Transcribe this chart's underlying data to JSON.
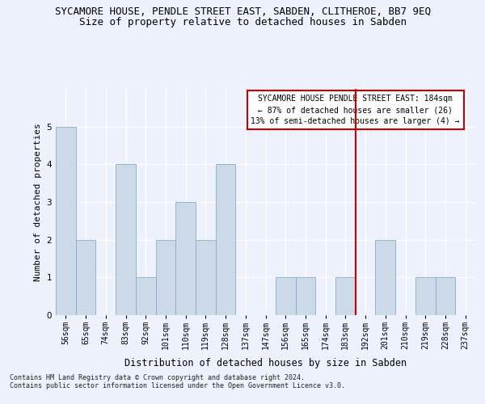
{
  "title": "SYCAMORE HOUSE, PENDLE STREET EAST, SABDEN, CLITHEROE, BB7 9EQ",
  "subtitle": "Size of property relative to detached houses in Sabden",
  "xlabel": "Distribution of detached houses by size in Sabden",
  "ylabel": "Number of detached properties",
  "bin_labels": [
    "56sqm",
    "65sqm",
    "74sqm",
    "83sqm",
    "92sqm",
    "101sqm",
    "110sqm",
    "119sqm",
    "128sqm",
    "137sqm",
    "147sqm",
    "156sqm",
    "165sqm",
    "174sqm",
    "183sqm",
    "192sqm",
    "201sqm",
    "210sqm",
    "219sqm",
    "228sqm",
    "237sqm"
  ],
  "bar_heights": [
    5,
    2,
    0,
    4,
    1,
    2,
    3,
    2,
    4,
    0,
    0,
    1,
    1,
    0,
    1,
    0,
    2,
    0,
    1,
    1,
    0
  ],
  "bar_color": "#ccd9e8",
  "bar_edge_color": "#8aaac8",
  "highlight_line_bin": 14,
  "highlight_line_color": "#cc0000",
  "annotation_text": "SYCAMORE HOUSE PENDLE STREET EAST: 184sqm\n← 87% of detached houses are smaller (26)\n13% of semi-detached houses are larger (4) →",
  "annotation_box_facecolor": "#ffffff",
  "annotation_box_edgecolor": "#cc0000",
  "ylim": [
    0,
    6
  ],
  "yticks": [
    0,
    1,
    2,
    3,
    4,
    5
  ],
  "footer_text": "Contains HM Land Registry data © Crown copyright and database right 2024.\nContains public sector information licensed under the Open Government Licence v3.0.",
  "background_color": "#edf1fb",
  "title_fontsize": 9,
  "subtitle_fontsize": 9,
  "ylabel_fontsize": 8,
  "xlabel_fontsize": 8.5,
  "tick_fontsize": 7,
  "annotation_fontsize": 7,
  "footer_fontsize": 6
}
